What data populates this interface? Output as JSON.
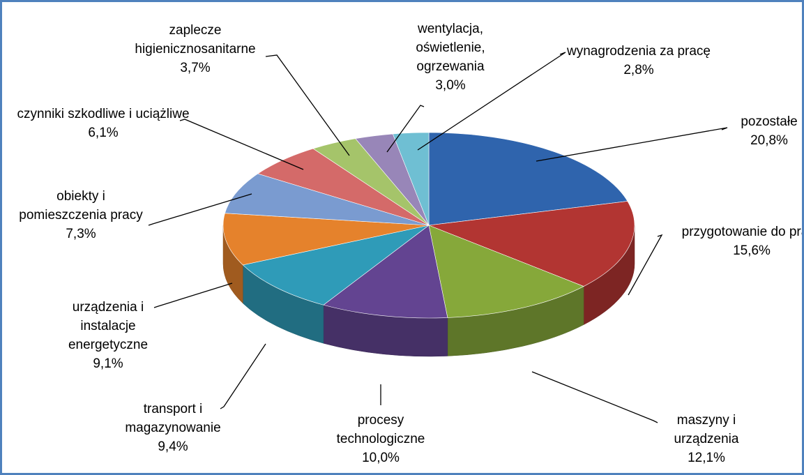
{
  "chart_data": {
    "type": "pie",
    "categories": [
      "pozostałe",
      "przygotowanie do pracy",
      "maszyny i urządzenia",
      "procesy technologiczne",
      "transport i magazynowanie",
      "urządzenia i instalacje energetyczne",
      "obiekty i pomieszczenia pracy",
      "czynniki szkodliwe i uciążliwe",
      "zaplecze higienicznosanitarne",
      "wentylacja, oświetlenie, ogrzewania",
      "wynagrodzenia za pracę"
    ],
    "values": [
      20.8,
      15.6,
      12.1,
      10.0,
      9.4,
      9.1,
      7.3,
      6.1,
      3.7,
      3.0,
      2.8
    ],
    "value_labels": [
      "20,8%",
      "15,6%",
      "12,1%",
      "10,0%",
      "9,4%",
      "9,1%",
      "7,3%",
      "6,1%",
      "3,7%",
      "3,0%",
      "2,8%"
    ],
    "colors": [
      "#2f64ad",
      "#b23532",
      "#86a83a",
      "#634491",
      "#2f9bb8",
      "#e5822c",
      "#7a9bd0",
      "#d46a69",
      "#a5c46a",
      "#9886b8",
      "#6fbfd3"
    ]
  }
}
